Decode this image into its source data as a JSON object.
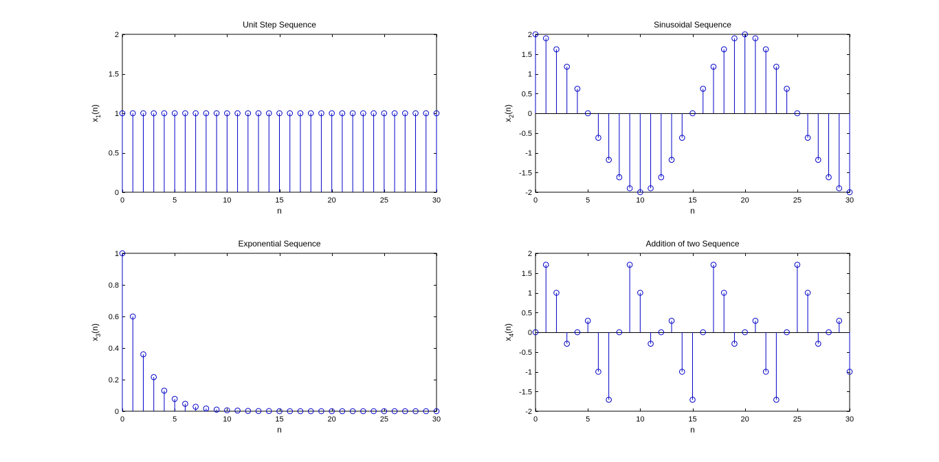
{
  "colors": {
    "stem": "#0000c8",
    "axes": "#000000",
    "background": "#ffffff"
  },
  "chart_data": [
    {
      "type": "stem",
      "title": "Unit Step Sequence",
      "xlabel": "n",
      "ylabel": {
        "base": "x",
        "sub": "1",
        "suffix": "(n)"
      },
      "xlim": [
        0,
        30
      ],
      "ylim": [
        0,
        2
      ],
      "xticks": [
        "0",
        "5",
        "10",
        "15",
        "20",
        "25",
        "30"
      ],
      "yticks": [
        "0",
        "0.5",
        "1",
        "1.5",
        "2"
      ],
      "x": [
        0,
        1,
        2,
        3,
        4,
        5,
        6,
        7,
        8,
        9,
        10,
        11,
        12,
        13,
        14,
        15,
        16,
        17,
        18,
        19,
        20,
        21,
        22,
        23,
        24,
        25,
        26,
        27,
        28,
        29,
        30
      ],
      "y": [
        1,
        1,
        1,
        1,
        1,
        1,
        1,
        1,
        1,
        1,
        1,
        1,
        1,
        1,
        1,
        1,
        1,
        1,
        1,
        1,
        1,
        1,
        1,
        1,
        1,
        1,
        1,
        1,
        1,
        1,
        1
      ],
      "baseline": false
    },
    {
      "type": "stem",
      "title": "Sinusoidal Sequence",
      "xlabel": "n",
      "ylabel": {
        "base": "x",
        "sub": "2",
        "suffix": "(n)"
      },
      "xlim": [
        0,
        30
      ],
      "ylim": [
        -2,
        2
      ],
      "xticks": [
        "0",
        "5",
        "10",
        "15",
        "20",
        "25",
        "30"
      ],
      "yticks": [
        "-2",
        "-1.5",
        "-1",
        "-0.5",
        "0",
        "0.5",
        "1",
        "1.5",
        "2"
      ],
      "x": [
        0,
        1,
        2,
        3,
        4,
        5,
        6,
        7,
        8,
        9,
        10,
        11,
        12,
        13,
        14,
        15,
        16,
        17,
        18,
        19,
        20,
        21,
        22,
        23,
        24,
        25,
        26,
        27,
        28,
        29,
        30
      ],
      "y": [
        2,
        1.9,
        1.62,
        1.18,
        0.62,
        0,
        -0.62,
        -1.18,
        -1.62,
        -1.9,
        -2,
        -1.9,
        -1.62,
        -1.18,
        -0.62,
        0,
        0.62,
        1.18,
        1.62,
        1.9,
        2,
        1.9,
        1.62,
        1.18,
        0.62,
        0,
        -0.62,
        -1.18,
        -1.62,
        -1.9,
        -2
      ],
      "baseline": true
    },
    {
      "type": "stem",
      "title": "Exponential Sequence",
      "xlabel": "n",
      "ylabel": {
        "base": "x",
        "sub": "3",
        "suffix": "(n)"
      },
      "xlim": [
        0,
        30
      ],
      "ylim": [
        0,
        1
      ],
      "xticks": [
        "0",
        "5",
        "10",
        "15",
        "20",
        "25",
        "30"
      ],
      "yticks": [
        "0",
        "0.2",
        "0.4",
        "0.6",
        "0.8",
        "1"
      ],
      "x": [
        0,
        1,
        2,
        3,
        4,
        5,
        6,
        7,
        8,
        9,
        10,
        11,
        12,
        13,
        14,
        15,
        16,
        17,
        18,
        19,
        20,
        21,
        22,
        23,
        24,
        25,
        26,
        27,
        28,
        29,
        30
      ],
      "y": [
        1,
        0.6,
        0.36,
        0.216,
        0.13,
        0.078,
        0.047,
        0.028,
        0.017,
        0.01,
        0.006,
        0.004,
        0.002,
        0.001,
        0.001,
        0,
        0,
        0,
        0,
        0,
        0,
        0,
        0,
        0,
        0,
        0,
        0,
        0,
        0,
        0,
        0
      ],
      "baseline": false
    },
    {
      "type": "stem",
      "title": "Addition of two Sequence",
      "xlabel": "n",
      "ylabel": {
        "base": "x",
        "sub": "4",
        "suffix": "(n)"
      },
      "xlim": [
        0,
        30
      ],
      "ylim": [
        -2,
        2
      ],
      "xticks": [
        "0",
        "5",
        "10",
        "15",
        "20",
        "25",
        "30"
      ],
      "yticks": [
        "-2",
        "-1.5",
        "-1",
        "-0.5",
        "0",
        "0.5",
        "1",
        "1.5",
        "2"
      ],
      "x": [
        0,
        1,
        2,
        3,
        4,
        5,
        6,
        7,
        8,
        9,
        10,
        11,
        12,
        13,
        14,
        15,
        16,
        17,
        18,
        19,
        20,
        21,
        22,
        23,
        24,
        25,
        26,
        27,
        28,
        29,
        30
      ],
      "y": [
        0,
        1.71,
        1,
        -0.29,
        0,
        0.29,
        -1,
        -1.71,
        0,
        1.71,
        1,
        -0.29,
        0,
        0.29,
        -1,
        -1.71,
        0,
        1.71,
        1,
        -0.29,
        0,
        0.29,
        -1,
        -1.71,
        0,
        1.71,
        1,
        -0.29,
        0,
        0.29,
        -1
      ],
      "baseline": true
    }
  ]
}
